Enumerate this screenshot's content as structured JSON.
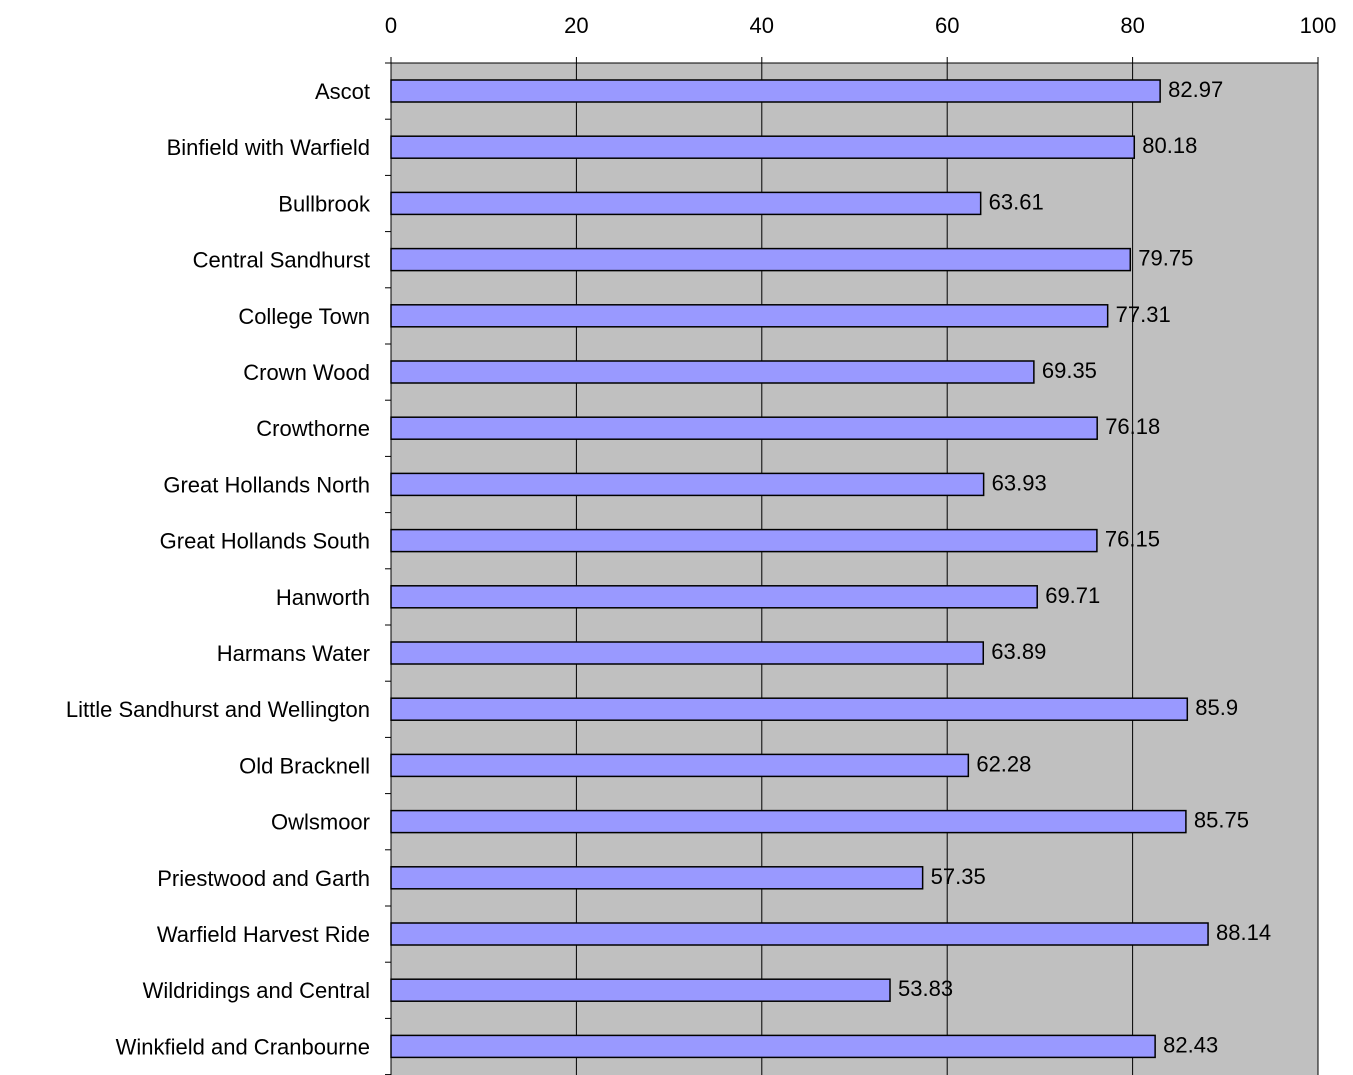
{
  "chart_data": {
    "type": "bar",
    "orientation": "horizontal",
    "title": "",
    "xlabel": "",
    "ylabel": "",
    "xlim": [
      0,
      100
    ],
    "x_ticks": [
      0,
      20,
      40,
      60,
      80,
      100
    ],
    "x_axis_position": "top",
    "grid": true,
    "legend": "none",
    "categories": [
      "Ascot",
      "Binfield with Warfield",
      "Bullbrook",
      "Central Sandhurst",
      "College Town",
      "Crown Wood",
      "Crowthorne",
      "Great Hollands North",
      "Great Hollands South",
      "Hanworth",
      "Harmans Water",
      "Little Sandhurst and Wellington",
      "Old Bracknell",
      "Owlsmoor",
      "Priestwood and Garth",
      "Warfield Harvest Ride",
      "Wildridings and Central",
      "Winkfield and Cranbourne"
    ],
    "values": [
      82.97,
      80.18,
      63.61,
      79.75,
      77.31,
      69.35,
      76.18,
      63.93,
      76.15,
      69.71,
      63.89,
      85.9,
      62.28,
      85.75,
      57.35,
      88.14,
      53.83,
      82.43
    ],
    "value_labels": [
      "82.97",
      "80.18",
      "63.61",
      "79.75",
      "77.31",
      "69.35",
      "76.18",
      "63.93",
      "76.15",
      "69.71",
      "63.89",
      "85.9",
      "62.28",
      "85.75",
      "57.35",
      "88.14",
      "53.83",
      "82.43"
    ],
    "colors": {
      "bar_fill": "#9999ff",
      "bar_stroke": "#000000",
      "plot_background": "#c0c0c0",
      "gridline": "#000000"
    }
  }
}
